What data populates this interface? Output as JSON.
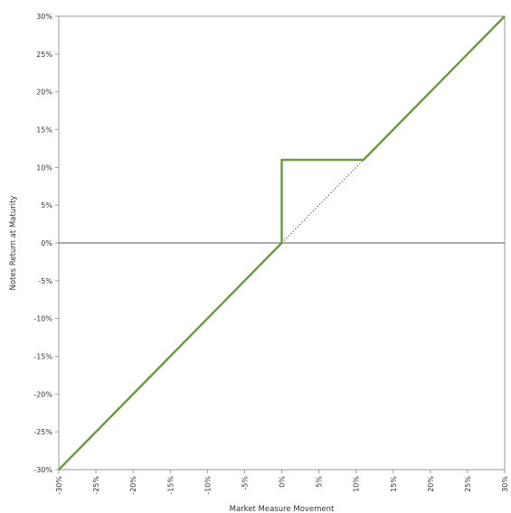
{
  "chart_data": {
    "type": "line",
    "title": "",
    "xlabel": "Market Measure Movement",
    "ylabel": "Notes Return at Maturity",
    "xlim": [
      -30,
      30
    ],
    "ylim": [
      -30,
      30
    ],
    "x_ticks": [
      "-30%",
      "-25%",
      "-20%",
      "-15%",
      "-10%",
      "-5%",
      "0%",
      "5%",
      "10%",
      "15%",
      "20%",
      "25%",
      "30%"
    ],
    "y_ticks": [
      "30%",
      "25%",
      "20%",
      "15%",
      "10%",
      "5%",
      "0%",
      "-5%",
      "-10%",
      "-15%",
      "-20%",
      "-25%",
      "-30%"
    ],
    "grid": false,
    "legend": "none",
    "series": [
      {
        "style": "solid",
        "color": "#6b9a3a",
        "x": [
          -30,
          0,
          0,
          11,
          30
        ],
        "y": [
          -30,
          0,
          11,
          11,
          30
        ]
      },
      {
        "style": "dotted",
        "color": "#333333",
        "x": [
          0,
          11
        ],
        "y": [
          0,
          11
        ]
      }
    ],
    "reference_line": {
      "y": 0,
      "color": "#555555"
    }
  }
}
